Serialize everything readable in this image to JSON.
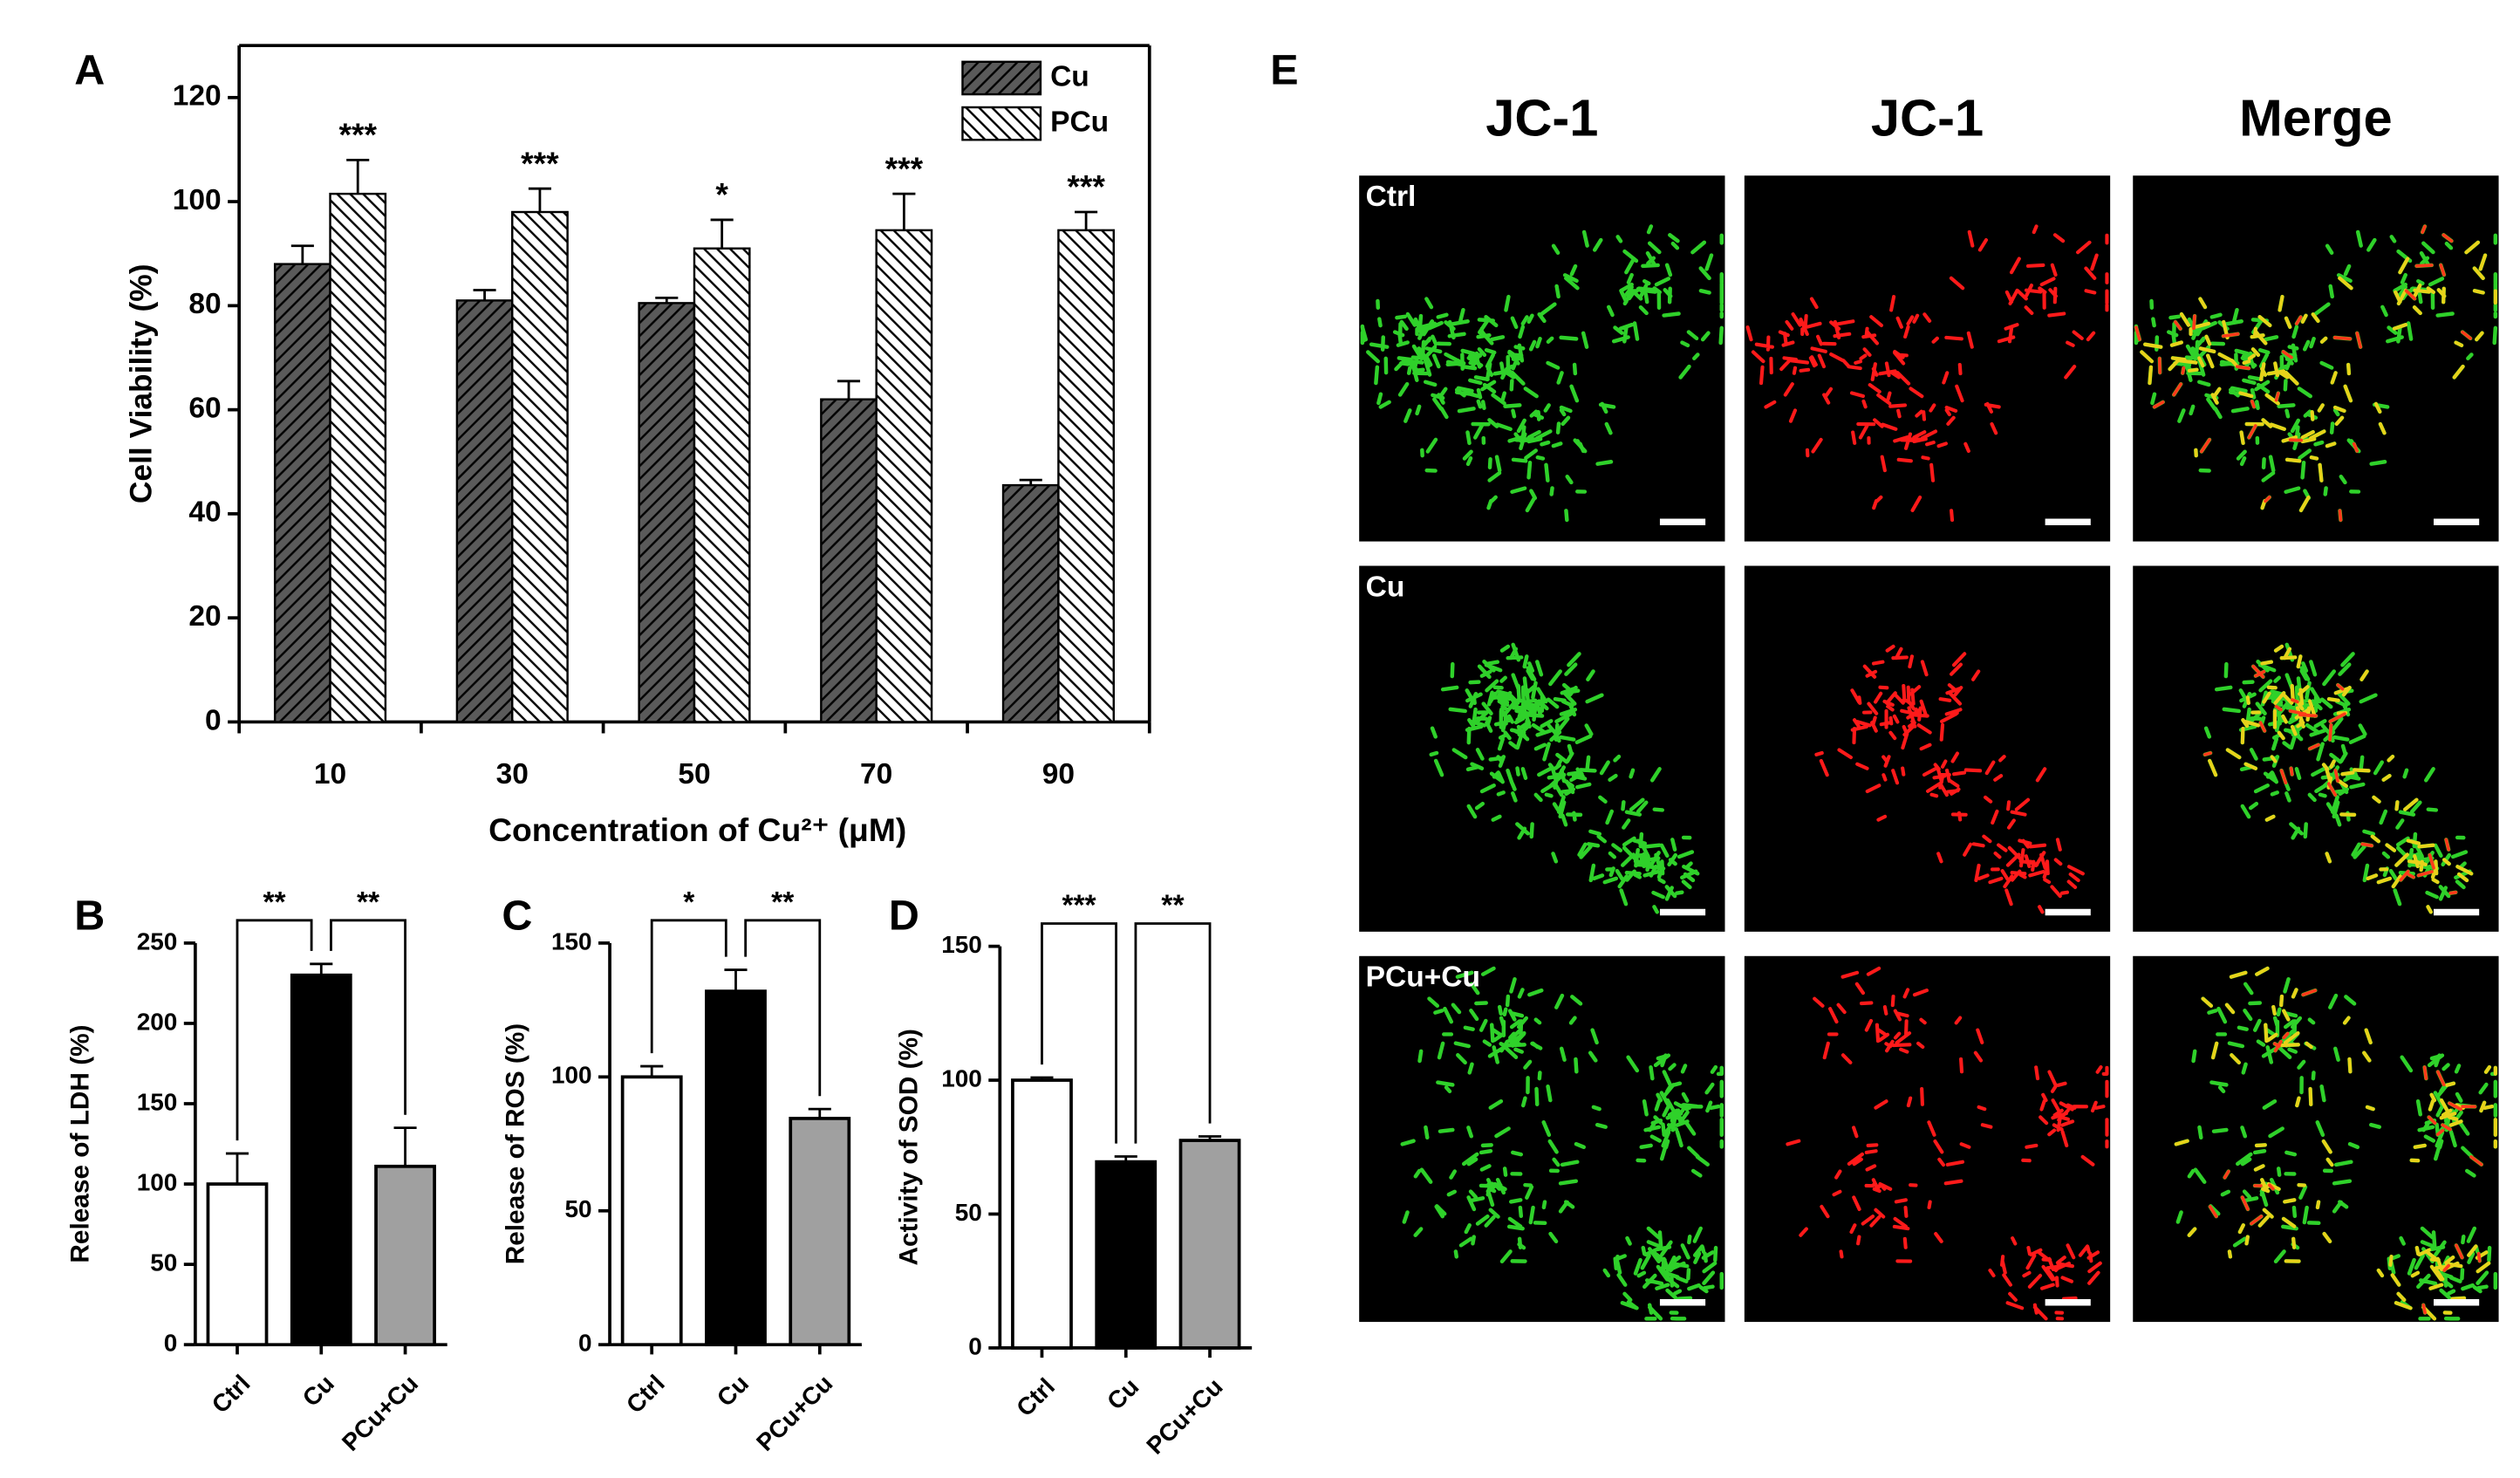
{
  "chart_data": [
    {
      "type": "bar",
      "label": "A",
      "ylabel": "Cell Viability (%)",
      "xlabel": "Concentration of Cu²⁺ (μM)",
      "categories": [
        "10",
        "30",
        "50",
        "70",
        "90"
      ],
      "series": [
        {
          "name": "Cu",
          "color": "#5a5a5a",
          "hatch": "/",
          "values": [
            88,
            81,
            80.5,
            62,
            45.5
          ],
          "errors": [
            3.5,
            2,
            1,
            3.5,
            1
          ]
        },
        {
          "name": "PCu",
          "color": "#ffffff",
          "hatch": "\\",
          "values": [
            101.5,
            98,
            91,
            94.5,
            94.5
          ],
          "errors": [
            6.5,
            4.5,
            5.5,
            7,
            3.5
          ]
        }
      ],
      "annotations": [
        "***",
        "***",
        "*",
        "***",
        "***"
      ],
      "ylim": [
        0,
        130
      ],
      "yticks": [
        0,
        20,
        40,
        60,
        80,
        100,
        120
      ],
      "legend": "upper right"
    },
    {
      "type": "bar",
      "label": "B",
      "ylabel": "Release of LDH (%)",
      "categories": [
        "Ctrl",
        "Cu",
        "PCu+Cu"
      ],
      "values": [
        100,
        230,
        111
      ],
      "errors": [
        19,
        7,
        24
      ],
      "colors": [
        "#ffffff",
        "#000000",
        "#a0a0a0"
      ],
      "brackets": [
        "**",
        "**"
      ],
      "ylim": [
        0,
        250
      ],
      "yticks": [
        0,
        50,
        100,
        150,
        200,
        250
      ]
    },
    {
      "type": "bar",
      "label": "C",
      "ylabel": "Release of ROS (%)",
      "categories": [
        "Ctrl",
        "Cu",
        "PCu+Cu"
      ],
      "values": [
        100,
        132,
        84.5
      ],
      "errors": [
        4,
        8,
        3.5
      ],
      "colors": [
        "#ffffff",
        "#000000",
        "#a0a0a0"
      ],
      "brackets": [
        "*",
        "**"
      ],
      "ylim": [
        0,
        150
      ],
      "yticks": [
        0,
        50,
        100,
        150
      ]
    },
    {
      "type": "bar",
      "label": "D",
      "ylabel": "Activity of SOD (%)",
      "categories": [
        "Ctrl",
        "Cu",
        "PCu+Cu"
      ],
      "values": [
        100,
        69.5,
        77.5
      ],
      "errors": [
        1,
        2,
        1.5
      ],
      "colors": [
        "#ffffff",
        "#000000",
        "#a0a0a0"
      ],
      "brackets": [
        "***",
        "**"
      ],
      "ylim": [
        0,
        150
      ],
      "yticks": [
        0,
        50,
        100,
        150
      ]
    }
  ],
  "images": {
    "label": "E",
    "columns": [
      "JC-1",
      "JC-1",
      "Merge"
    ],
    "rows": [
      "Ctrl",
      "Cu",
      "PCu+Cu"
    ]
  }
}
